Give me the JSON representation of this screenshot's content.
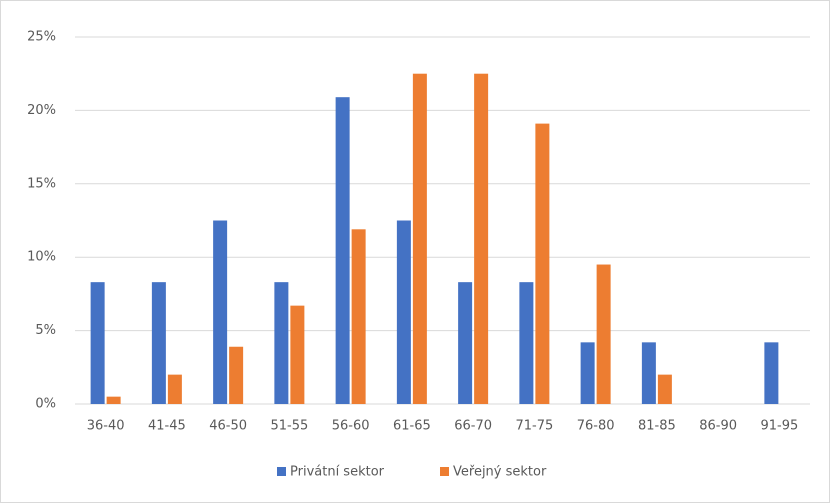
{
  "chart_data": {
    "type": "bar",
    "categories": [
      "36-40",
      "41-45",
      "46-50",
      "51-55",
      "56-60",
      "61-65",
      "66-70",
      "71-75",
      "76-80",
      "81-85",
      "86-90",
      "91-95"
    ],
    "series": [
      {
        "name": "Privátní sektor",
        "color": "#4472c4",
        "values": [
          8.3,
          8.3,
          12.5,
          8.3,
          20.9,
          12.5,
          8.3,
          8.3,
          4.2,
          4.2,
          0,
          4.2
        ]
      },
      {
        "name": "Veřejný sektor",
        "color": "#ed7d31",
        "values": [
          0.5,
          2.0,
          3.9,
          6.7,
          11.9,
          22.5,
          22.5,
          19.1,
          9.5,
          2.0,
          0,
          0
        ]
      }
    ],
    "ylim": [
      0,
      25
    ],
    "yticks": [
      {
        "value": 0,
        "label": "0%"
      },
      {
        "value": 5,
        "label": "5%"
      },
      {
        "value": 10,
        "label": "10%"
      },
      {
        "value": 15,
        "label": "15%"
      },
      {
        "value": 20,
        "label": "20%"
      },
      {
        "value": 25,
        "label": "25%"
      }
    ],
    "grid": true,
    "legend": "bottom"
  }
}
